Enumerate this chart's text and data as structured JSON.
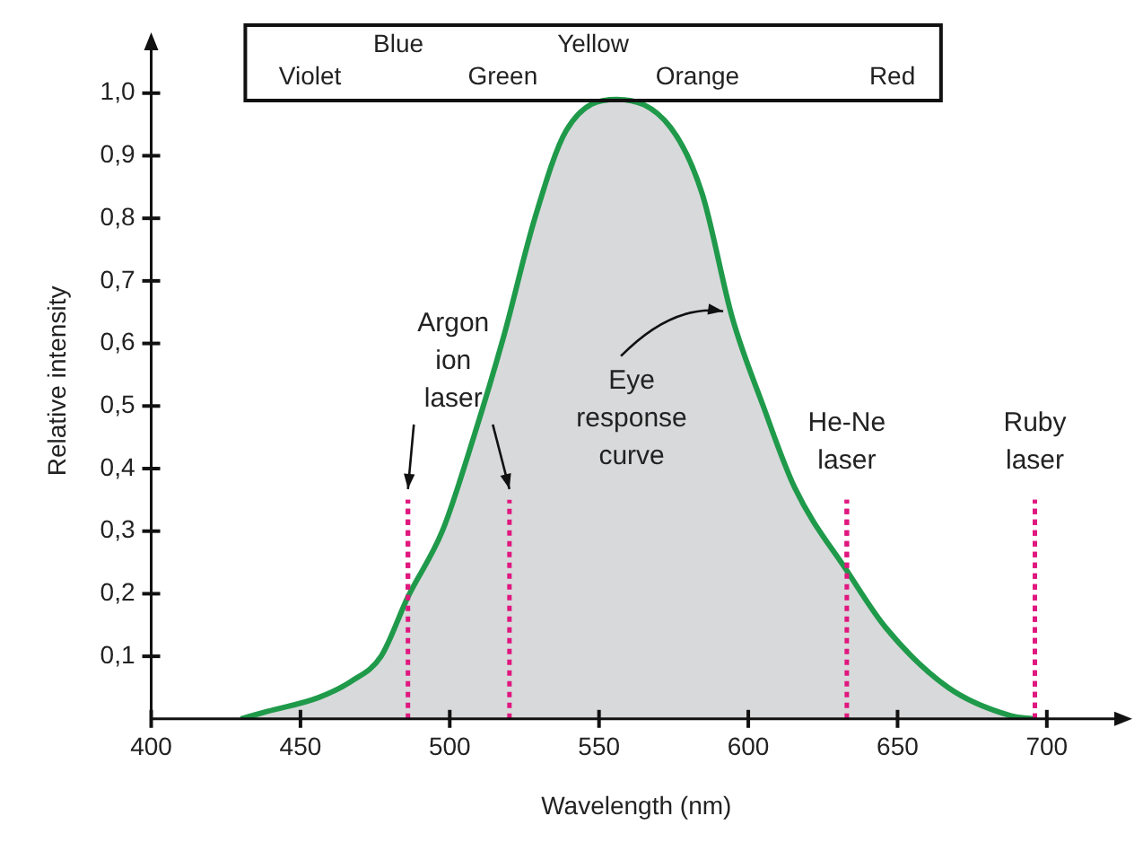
{
  "chart_data": {
    "type": "area",
    "xlabel": "Wavelength (nm)",
    "ylabel": "Relative intensity",
    "series": [
      {
        "color": "#1f9a4a",
        "x": [
          430,
          439,
          456,
          467,
          477,
          486,
          497.5,
          508,
          518,
          528.5,
          539,
          556,
          574,
          584.5,
          594.7,
          605,
          615.5,
          633.4,
          646,
          667,
          688,
          696
        ],
        "values": [
          0,
          0.012,
          0.034,
          0.06,
          0.1,
          0.195,
          0.3,
          0.45,
          0.61,
          0.8,
          0.94,
          0.99,
          0.945,
          0.84,
          0.64,
          0.5,
          0.37,
          0.234,
          0.146,
          0.05,
          0.005,
          0
        ]
      }
    ],
    "xlim": [
      400,
      725
    ],
    "xticks": [
      400,
      450,
      500,
      550,
      600,
      650,
      700
    ],
    "ylim": [
      0,
      1.08
    ],
    "yticks": [
      {
        "value": 0.1,
        "label": "0,1"
      },
      {
        "value": 0.2,
        "label": "0,2"
      },
      {
        "value": 0.3,
        "label": "0,3"
      },
      {
        "value": 0.4,
        "label": "0,4"
      },
      {
        "value": 0.5,
        "label": "0,5"
      },
      {
        "value": 0.6,
        "label": "0,6"
      },
      {
        "value": 0.7,
        "label": "0,7"
      },
      {
        "value": 0.8,
        "label": "0,8"
      },
      {
        "value": 0.9,
        "label": "0,9"
      },
      {
        "value": 1,
        "label": "1,0"
      }
    ],
    "ref_lines": [
      {
        "axis": "x",
        "value": 486,
        "label": "Argon ion laser",
        "color": "#e0177f",
        "line_style": "dotted"
      },
      {
        "axis": "x",
        "value": 520,
        "label": null,
        "color": "#e0177f",
        "line_style": "dotted"
      },
      {
        "axis": "x",
        "value": 633,
        "label": "He-Ne laser",
        "color": "#e0177f",
        "line_style": "dotted"
      },
      {
        "axis": "x",
        "value": 696,
        "label": "Ruby laser",
        "color": "#e0177f",
        "line_style": "dotted"
      }
    ],
    "annotations": [
      "Violet",
      "Blue",
      "Green",
      "Yellow",
      "Orange",
      "Red",
      {
        "text": "Eye response curve",
        "x": 594,
        "y": 0.64
      }
    ],
    "grid": false,
    "legend": false,
    "marker": "none",
    "line_style": "solid"
  }
}
